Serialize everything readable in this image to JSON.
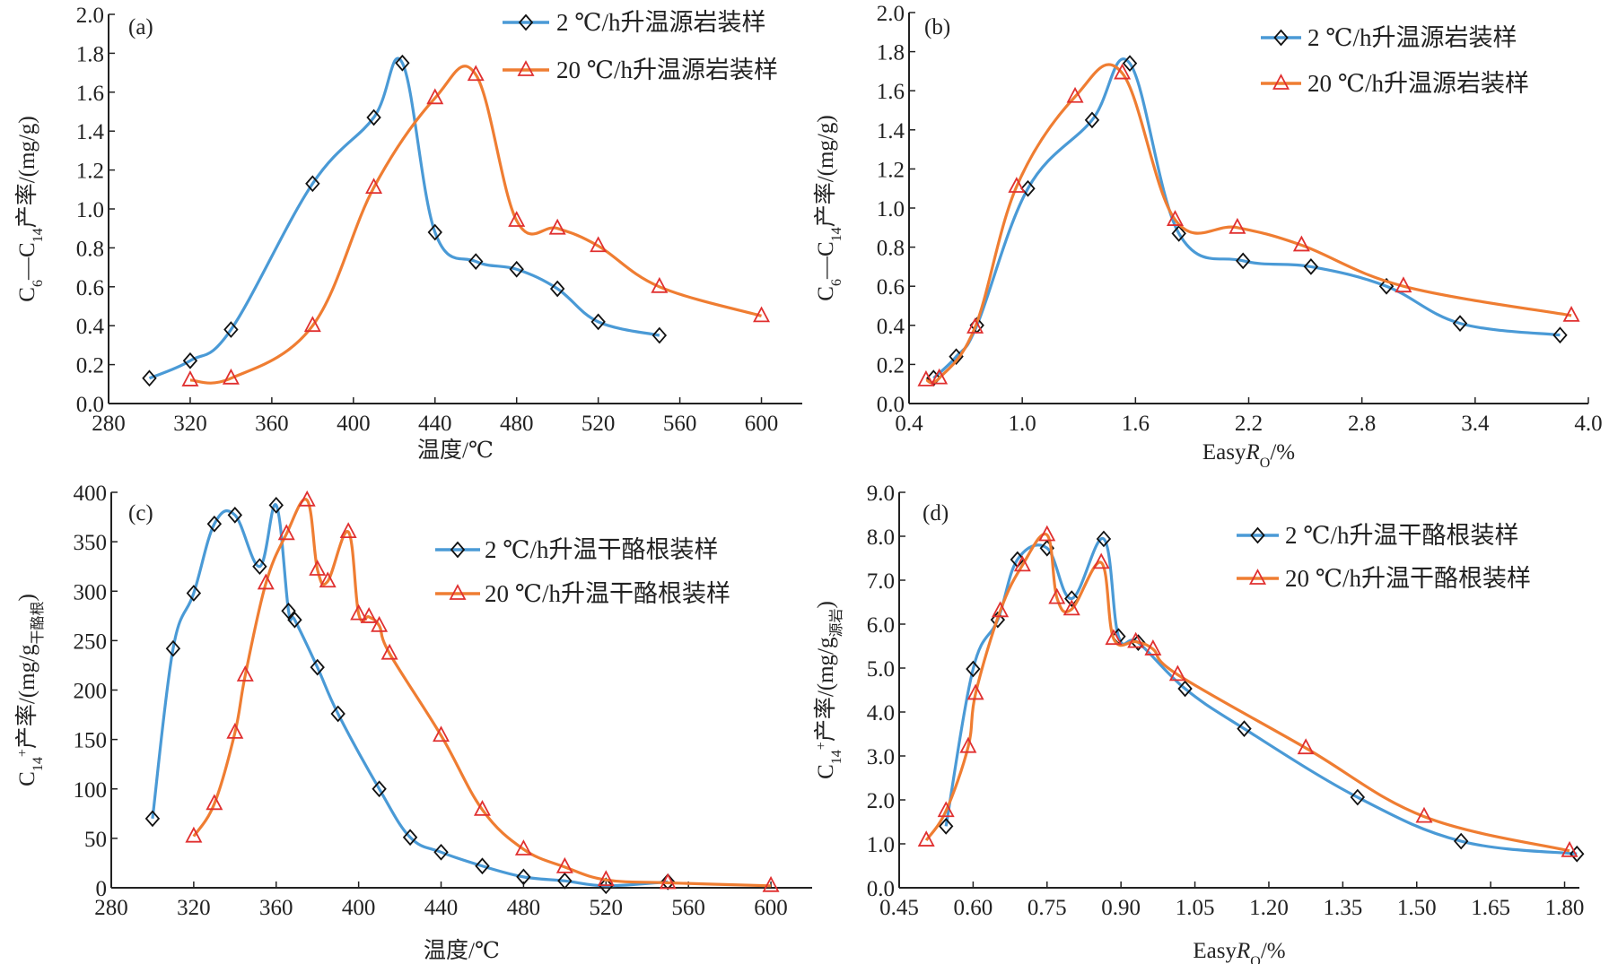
{
  "colors": {
    "series_2C": "#4a9ad6",
    "series_20C": "#ef7d32",
    "marker_2C": "#111111",
    "marker_20C": "#e03030"
  },
  "chart_data": [
    {
      "type": "line",
      "panel_label": "(a)",
      "xlabel": [
        {
          "t": "温度/℃"
        }
      ],
      "ylabel": [
        {
          "t": "C"
        },
        {
          "t": "6",
          "sub": true
        },
        {
          "t": "—C"
        },
        {
          "t": "14",
          "sub": true
        },
        {
          "t": "产率/(mg/g)"
        }
      ],
      "xlim": [
        280,
        620
      ],
      "ylim": [
        0,
        2.0
      ],
      "xticks": [
        "280",
        "320",
        "360",
        "400",
        "440",
        "480",
        "520",
        "560",
        "600"
      ],
      "yticks": [
        "0.0",
        "0.2",
        "0.4",
        "0.6",
        "0.8",
        "1.0",
        "1.2",
        "1.4",
        "1.6",
        "1.8",
        "2.0"
      ],
      "legend": "top-right",
      "series": [
        {
          "name": "2 ℃/h升温源岩装样",
          "marker": "diamond",
          "x": [
            300,
            320,
            340,
            380,
            410,
            424,
            440,
            460,
            480,
            500,
            520,
            550
          ],
          "y": [
            0.13,
            0.22,
            0.38,
            1.13,
            1.47,
            1.75,
            0.88,
            0.73,
            0.69,
            0.59,
            0.42,
            0.35
          ]
        },
        {
          "name": "20 ℃/h升温源岩装样",
          "marker": "triangle",
          "x": [
            320,
            340,
            380,
            410,
            440,
            460,
            480,
            500,
            520,
            550,
            600
          ],
          "y": [
            0.12,
            0.13,
            0.4,
            1.11,
            1.57,
            1.69,
            0.94,
            0.9,
            0.81,
            0.6,
            0.45
          ]
        }
      ]
    },
    {
      "type": "line",
      "panel_label": "(b)",
      "xlabel": [
        {
          "t": "Easy"
        },
        {
          "t": "R",
          "it": true
        },
        {
          "t": "O",
          "sub": true
        },
        {
          "t": "/%"
        }
      ],
      "ylabel": [
        {
          "t": "C"
        },
        {
          "t": "6",
          "sub": true
        },
        {
          "t": "—C"
        },
        {
          "t": "14",
          "sub": true
        },
        {
          "t": "产率/(mg/g)"
        }
      ],
      "xlim": [
        0.4,
        4.0
      ],
      "ylim": [
        0,
        2.0
      ],
      "xticks": [
        "0.4",
        "1.0",
        "1.6",
        "2.2",
        "2.8",
        "3.4",
        "4.0"
      ],
      "yticks": [
        "0.0",
        "0.2",
        "0.4",
        "0.6",
        "0.8",
        "1.0",
        "1.2",
        "1.4",
        "1.6",
        "1.8",
        "2.0"
      ],
      "legend": "top-right",
      "series": [
        {
          "name": "2 ℃/h升温源岩装样",
          "marker": "diamond",
          "x": [
            0.53,
            0.65,
            0.76,
            1.03,
            1.37,
            1.57,
            1.83,
            2.17,
            2.53,
            2.93,
            3.32,
            3.85
          ],
          "y": [
            0.13,
            0.24,
            0.4,
            1.1,
            1.45,
            1.74,
            0.87,
            0.73,
            0.7,
            0.6,
            0.41,
            0.35
          ]
        },
        {
          "name": "20 ℃/h升温源岩装样",
          "marker": "triangle",
          "x": [
            0.49,
            0.56,
            0.75,
            0.97,
            1.28,
            1.53,
            1.81,
            2.14,
            2.48,
            3.02,
            3.91
          ],
          "y": [
            0.12,
            0.13,
            0.39,
            1.11,
            1.57,
            1.69,
            0.94,
            0.9,
            0.81,
            0.6,
            0.45
          ]
        }
      ]
    },
    {
      "type": "line",
      "panel_label": "(c)",
      "xlabel": [
        {
          "t": "温度/℃"
        }
      ],
      "ylabel": [
        {
          "t": "C"
        },
        {
          "t": "14",
          "sub": true
        },
        {
          "t": "+",
          "sup": true
        },
        {
          "t": "产率/(mg/g"
        },
        {
          "t": "干酪根",
          "sub": true
        },
        {
          "t": ")"
        }
      ],
      "xlim": [
        280,
        620
      ],
      "ylim": [
        0,
        400
      ],
      "xticks": [
        "280",
        "320",
        "360",
        "400",
        "440",
        "480",
        "520",
        "560",
        "600"
      ],
      "yticks": [
        "0",
        "50",
        "100",
        "150",
        "200",
        "250",
        "300",
        "350",
        "400"
      ],
      "legend": "right",
      "series": [
        {
          "name": "2 ℃/h升温干酪根装样",
          "marker": "diamond",
          "x": [
            300,
            310,
            320,
            330,
            340,
            352,
            360,
            366,
            369,
            380,
            390,
            410,
            425,
            440,
            460,
            480,
            500,
            520,
            550
          ],
          "y": [
            70,
            242,
            298,
            368,
            377,
            325,
            387,
            280,
            271,
            223,
            176,
            100,
            51,
            36,
            22,
            11,
            7,
            2,
            6
          ]
        },
        {
          "name": "20 ℃/h升温干酪根装样",
          "marker": "triangle",
          "x": [
            320,
            330,
            340,
            345,
            355,
            365,
            375,
            380,
            385,
            395,
            400,
            405,
            410,
            415,
            440,
            460,
            480,
            500,
            520,
            550,
            600
          ],
          "y": [
            52,
            85,
            157,
            215,
            308,
            358,
            392,
            322,
            310,
            360,
            277,
            274,
            265,
            237,
            154,
            79,
            39,
            21,
            8,
            5,
            2
          ]
        }
      ]
    },
    {
      "type": "line",
      "panel_label": "(d)",
      "xlabel": [
        {
          "t": "Easy"
        },
        {
          "t": "R",
          "it": true
        },
        {
          "t": "O",
          "sub": true
        },
        {
          "t": "/%"
        }
      ],
      "ylabel": [
        {
          "t": "C"
        },
        {
          "t": "14",
          "sub": true
        },
        {
          "t": "+",
          "sup": true
        },
        {
          "t": "产率/(mg/g"
        },
        {
          "t": "源岩",
          "sub": true
        },
        {
          "t": ")"
        }
      ],
      "xlim": [
        0.45,
        1.83
      ],
      "ylim": [
        0,
        9.0
      ],
      "xticks": [
        "0.45",
        "0.60",
        "0.75",
        "0.90",
        "1.05",
        "1.20",
        "1.35",
        "1.50",
        "1.65",
        "1.80"
      ],
      "yticks": [
        "0.0",
        "1.0",
        "2.0",
        "3.0",
        "4.0",
        "5.0",
        "6.0",
        "7.0",
        "8.0",
        "9.0"
      ],
      "legend": "top-right",
      "series": [
        {
          "name": "2 ℃/h升温干酪根装样",
          "marker": "diamond",
          "x": [
            0.545,
            0.6,
            0.65,
            0.69,
            0.75,
            0.8,
            0.865,
            0.895,
            0.935,
            1.03,
            1.15,
            1.38,
            1.59,
            1.825
          ],
          "y": [
            1.4,
            4.98,
            6.1,
            7.47,
            7.73,
            6.58,
            7.94,
            5.72,
            5.58,
            4.53,
            3.62,
            2.06,
            1.06,
            0.77
          ]
        },
        {
          "name": "20 ℃/h升温干酪根装样",
          "marker": "triangle",
          "x": [
            0.505,
            0.545,
            0.59,
            0.605,
            0.655,
            0.7,
            0.75,
            0.77,
            0.8,
            0.86,
            0.885,
            0.93,
            0.965,
            1.015,
            1.275,
            1.515,
            1.81
          ],
          "y": [
            1.08,
            1.75,
            3.21,
            4.42,
            6.3,
            7.34,
            8.03,
            6.6,
            6.34,
            7.4,
            5.67,
            5.6,
            5.43,
            4.85,
            3.18,
            1.62,
            0.84
          ]
        }
      ]
    }
  ]
}
